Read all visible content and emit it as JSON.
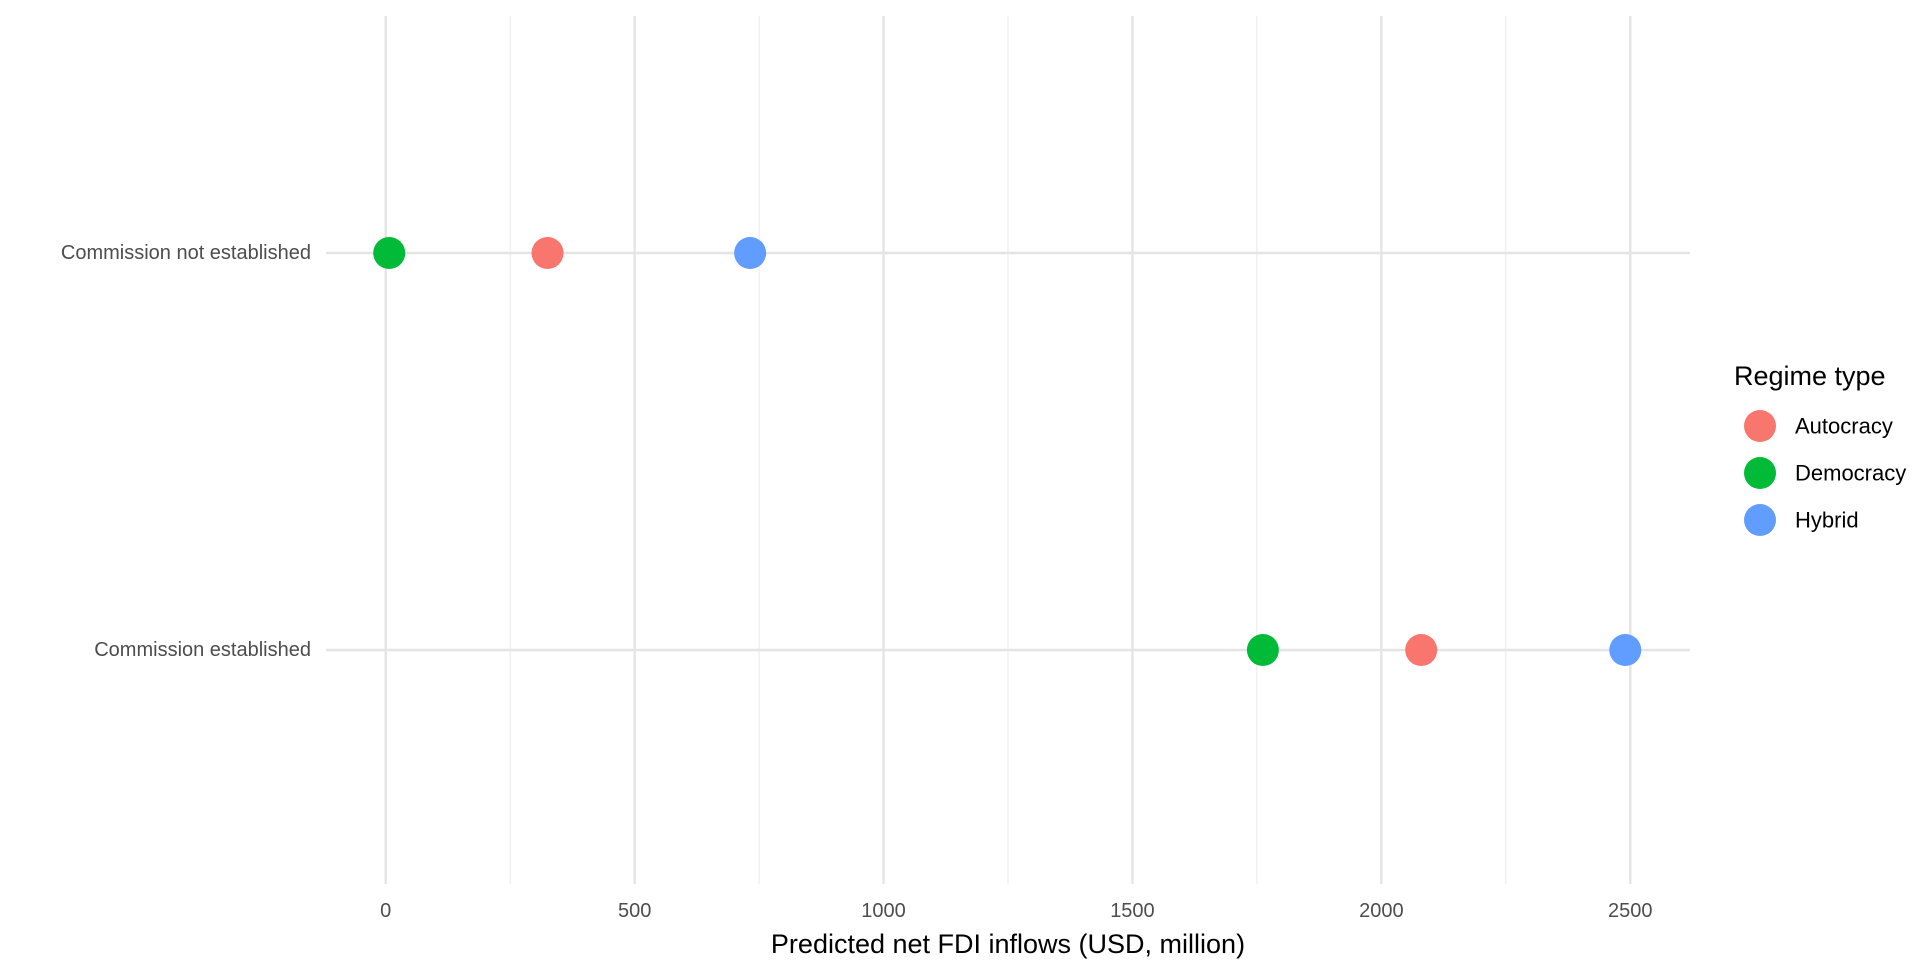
{
  "chart_data": {
    "type": "scatter",
    "title": "",
    "xlabel": "Predicted net FDI inflows (USD, million)",
    "ylabel": "",
    "xlim": [
      -120,
      2620
    ],
    "x_ticks": [
      0,
      500,
      1000,
      1500,
      2000,
      2500
    ],
    "x_tick_labels": [
      "0",
      "500",
      "1000",
      "1500",
      "2000",
      "2500"
    ],
    "categories": [
      "Commission not established",
      "Commission established"
    ],
    "grid": true,
    "legend": {
      "title": "Regime type",
      "position": "right"
    },
    "series": [
      {
        "name": "Autocracy",
        "color": "#F8766D",
        "values": [
          325,
          2080
        ]
      },
      {
        "name": "Democracy",
        "color": "#00BA38",
        "values": [
          7,
          1762
        ]
      },
      {
        "name": "Hybrid",
        "color": "#619CFF",
        "values": [
          732,
          2490
        ]
      }
    ]
  }
}
